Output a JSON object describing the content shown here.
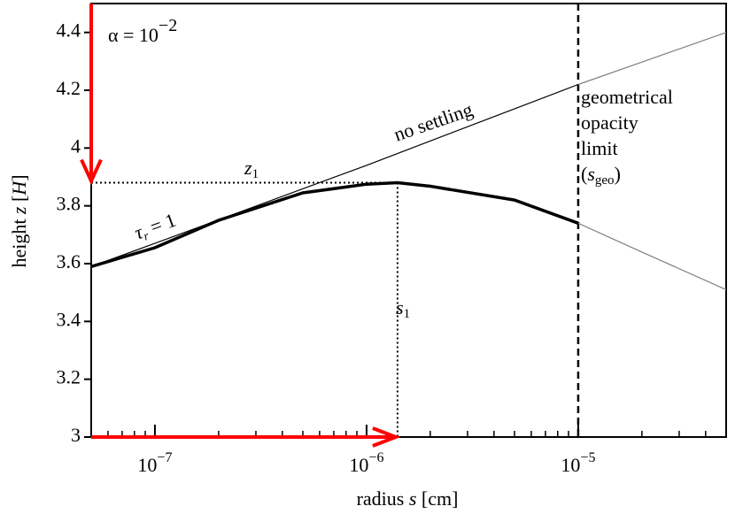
{
  "chart_data": {
    "type": "line",
    "log_x": true,
    "xlabel": [
      "radius ",
      "s",
      " [cm]"
    ],
    "ylabel": [
      "height ",
      "z",
      " [",
      "H",
      "]"
    ],
    "xlim": [
      5e-08,
      5e-05
    ],
    "ylim": [
      3.0,
      4.5
    ],
    "xticks": [
      {
        "value": 1e-07,
        "label": "10",
        "exponent": "−7"
      },
      {
        "value": 1e-06,
        "label": "10",
        "exponent": "−6"
      },
      {
        "value": 1e-05,
        "label": "10",
        "exponent": "−5"
      }
    ],
    "xminorticks": [
      6e-08,
      7e-08,
      8e-08,
      9e-08,
      2e-07,
      3e-07,
      4e-07,
      5e-07,
      6e-07,
      7e-07,
      8e-07,
      9e-07,
      2e-06,
      3e-06,
      4e-06,
      5e-06,
      6e-06,
      7e-06,
      8e-06,
      9e-06,
      2e-05,
      3e-05,
      4e-05,
      5e-05
    ],
    "yticks": [
      3.0,
      3.2,
      3.4,
      3.6,
      3.8,
      4.0,
      4.2,
      4.4
    ],
    "series": [
      {
        "color": "#000000",
        "line_width": 1.2,
        "x": [
          5e-08,
          1e-07,
          1e-06,
          1e-05
        ],
        "values": [
          3.59,
          3.67,
          3.94,
          4.22
        ]
      },
      {
        "color": "#808080",
        "line_width": 1.2,
        "x": [
          1e-05,
          5e-05
        ],
        "values": [
          4.22,
          4.4
        ]
      },
      {
        "color": "#000000",
        "line_width": 3.5,
        "x": [
          5e-08,
          1e-07,
          2e-07,
          5e-07,
          1e-06,
          1.4e-06,
          2e-06,
          5e-06,
          1e-05
        ],
        "values": [
          3.59,
          3.655,
          3.75,
          3.845,
          3.875,
          3.88,
          3.868,
          3.82,
          3.74
        ]
      },
      {
        "color": "#808080",
        "line_width": 1.2,
        "x": [
          1e-05,
          2e-05,
          5e-05
        ],
        "values": [
          3.74,
          3.64,
          3.51
        ]
      }
    ],
    "z1": 3.88,
    "s1": 1.4e-06,
    "s_geo": 1e-05,
    "arrow_color": "#ff0000",
    "annotations": {
      "alpha": {
        "text": "α = 10",
        "sup": "−2"
      },
      "no_settling": "no settling",
      "tau": {
        "text": "τ",
        "sub": "r",
        "rest": " = 1"
      },
      "z1": {
        "text": "z",
        "sub": "1"
      },
      "s1": {
        "text": "s",
        "sub": "1"
      },
      "geo": [
        "geometrical",
        "opacity",
        "limit"
      ],
      "sgeo": {
        "open": "(",
        "text": "s",
        "sub": "geo",
        "close": ")"
      }
    }
  }
}
